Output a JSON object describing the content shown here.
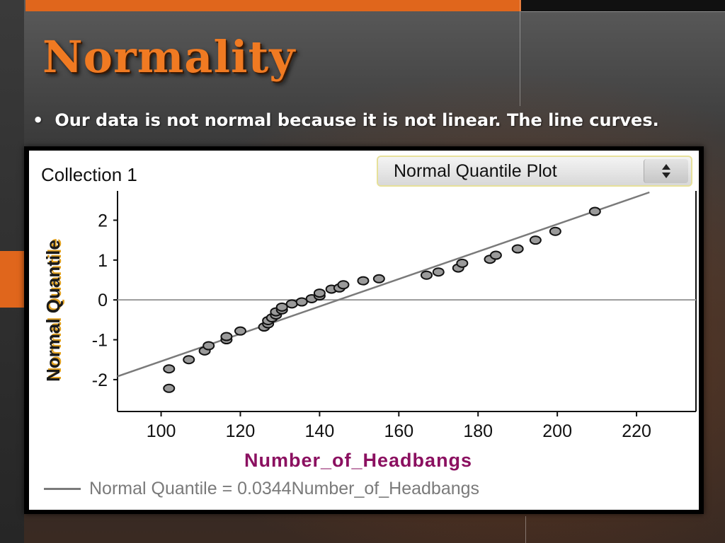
{
  "slide": {
    "title": "Normality",
    "bullet": "Our data is not normal because it is not linear.  The line curves."
  },
  "panel": {
    "collection_label": "Collection 1",
    "plot_type_selector": "Normal Quantile Plot",
    "legend_text": "Normal Quantile = 0.0344Number_of_Headbangs"
  },
  "colors": {
    "accent": "#e0661c",
    "title": "#f07a22",
    "xlabel": "#8b1060",
    "fit_line": "#7a7a7a",
    "points": "#9a9a9a"
  },
  "chart_data": {
    "type": "scatter",
    "xlabel": "Number_of_Headbangs",
    "ylabel": "Normal Quantile",
    "xlim": [
      89,
      235
    ],
    "ylim": [
      -2.8,
      2.7
    ],
    "x_ticks": [
      100,
      120,
      140,
      160,
      180,
      200,
      220
    ],
    "y_ticks": [
      -2,
      -1,
      0,
      1,
      2
    ],
    "grid": false,
    "reference_line_y": 0,
    "fit_line": {
      "slope": 0.0344,
      "intercept": -4.98,
      "label": "Normal Quantile = 0.0344Number_of_Headbangs"
    },
    "points": [
      [
        102,
        -2.22
      ],
      [
        102,
        -1.73
      ],
      [
        107,
        -1.5
      ],
      [
        111,
        -1.28
      ],
      [
        112,
        -1.15
      ],
      [
        116.5,
        -1.0
      ],
      [
        116.5,
        -0.92
      ],
      [
        120,
        -0.78
      ],
      [
        126,
        -0.68
      ],
      [
        127,
        -0.6
      ],
      [
        127,
        -0.52
      ],
      [
        128,
        -0.45
      ],
      [
        129,
        -0.38
      ],
      [
        129,
        -0.3
      ],
      [
        130.5,
        -0.25
      ],
      [
        130.5,
        -0.18
      ],
      [
        133,
        -0.1
      ],
      [
        135.5,
        -0.05
      ],
      [
        138,
        0.03
      ],
      [
        140,
        0.1
      ],
      [
        140,
        0.17
      ],
      [
        143,
        0.27
      ],
      [
        145,
        0.3
      ],
      [
        146,
        0.38
      ],
      [
        151,
        0.48
      ],
      [
        155,
        0.53
      ],
      [
        167,
        0.62
      ],
      [
        170,
        0.7
      ],
      [
        175,
        0.8
      ],
      [
        176,
        0.92
      ],
      [
        183,
        1.02
      ],
      [
        184.5,
        1.12
      ],
      [
        190,
        1.28
      ],
      [
        194.5,
        1.5
      ],
      [
        199.5,
        1.72
      ],
      [
        209.5,
        2.22
      ]
    ]
  }
}
